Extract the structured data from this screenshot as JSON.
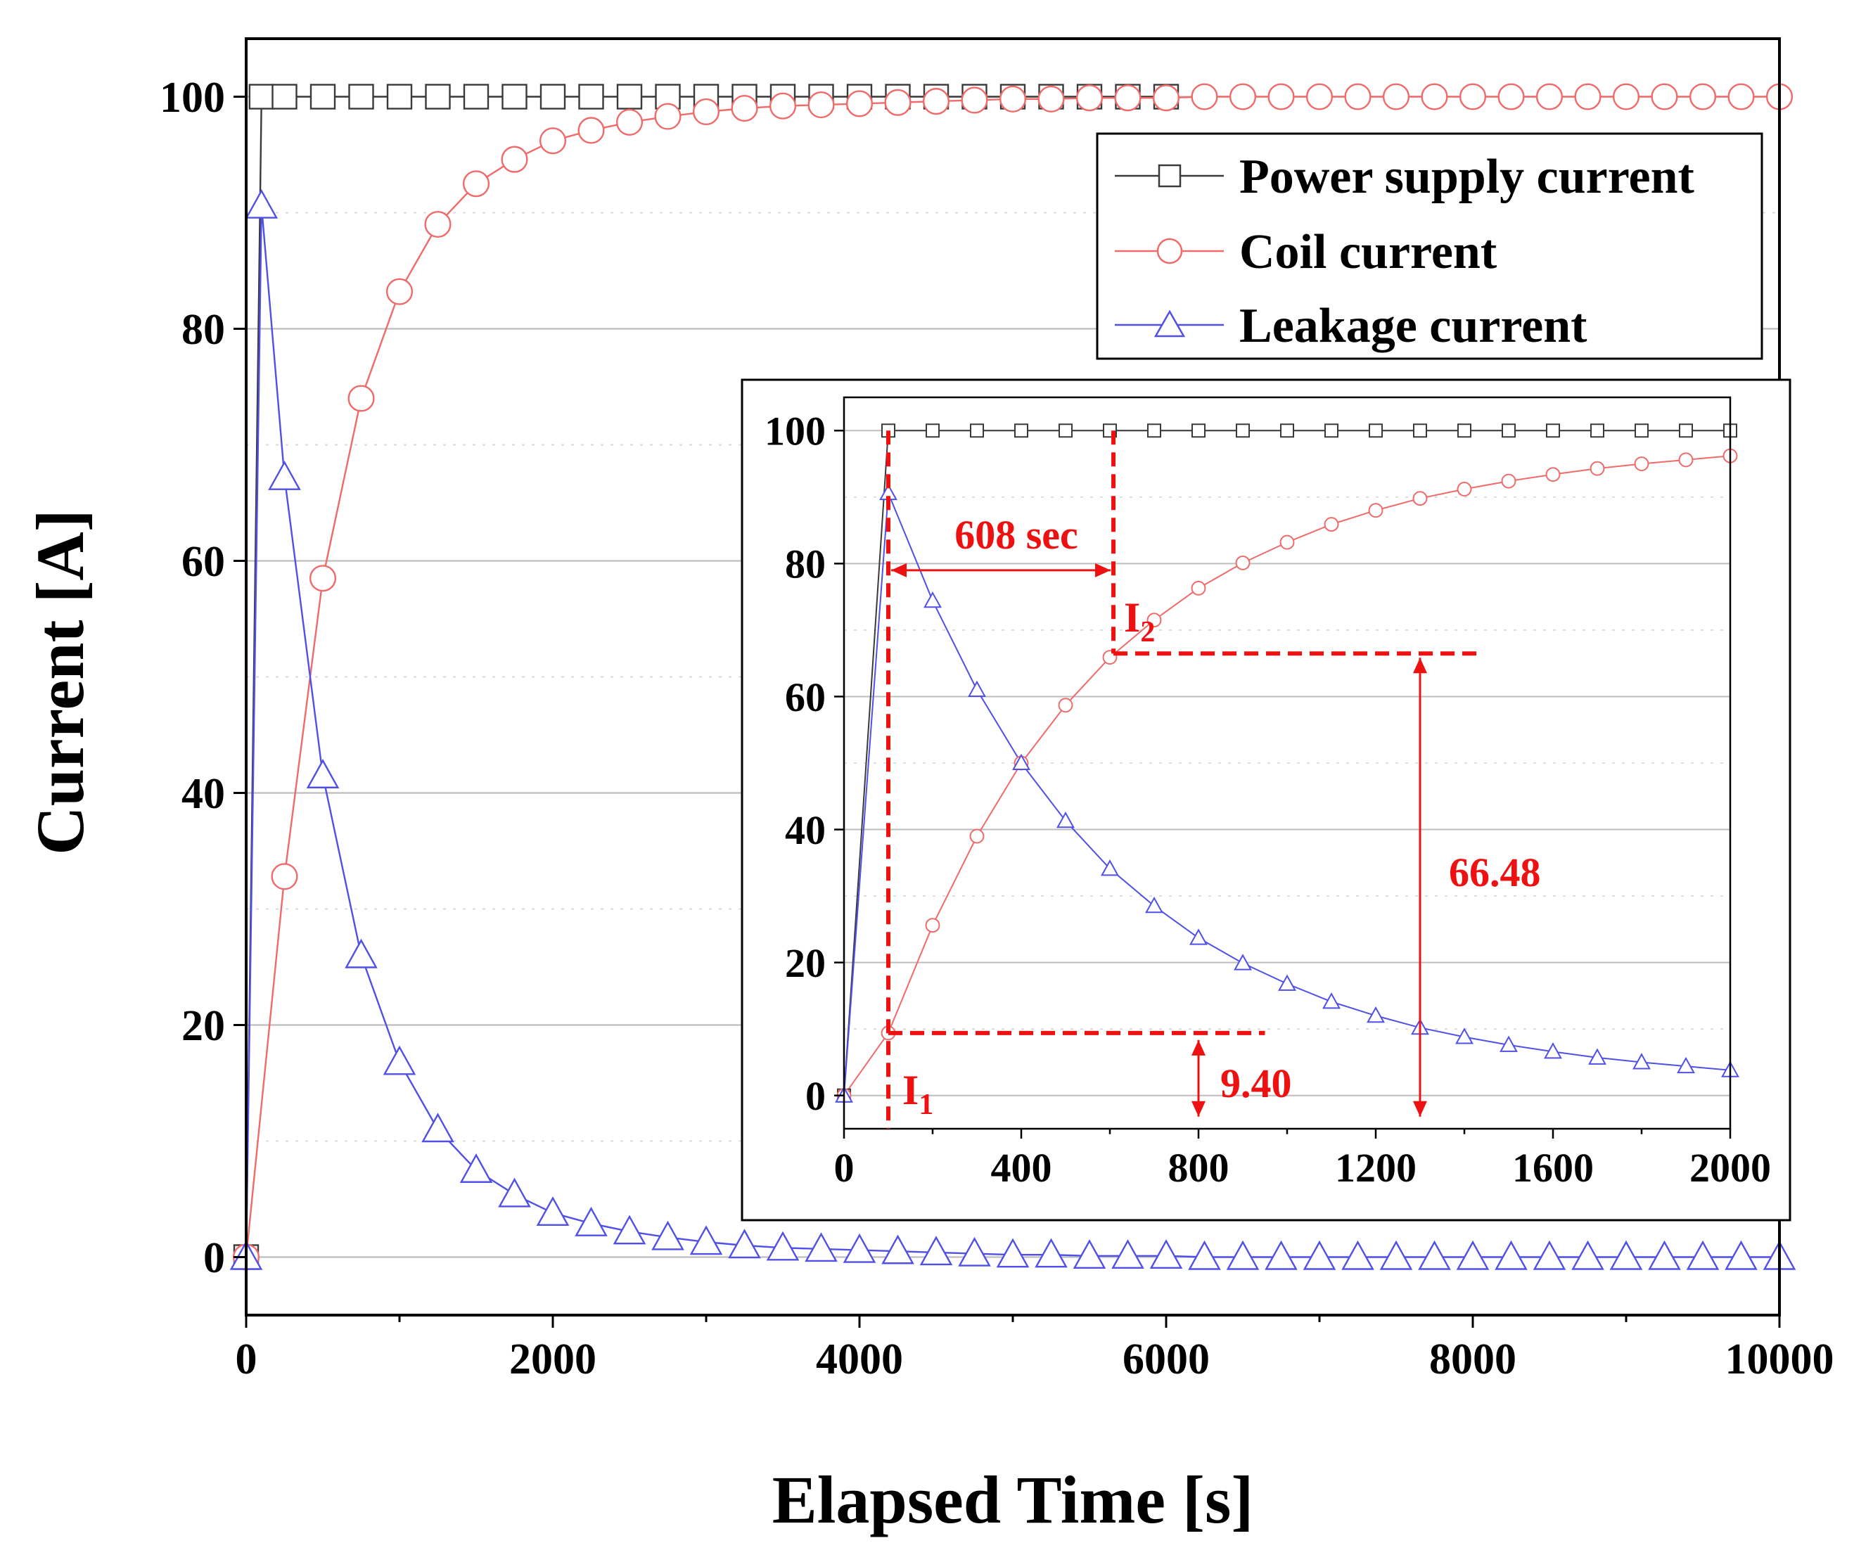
{
  "colors": {
    "supply": "#3a3a3a",
    "coil": "#f06a6a",
    "leak": "#5050e8",
    "annot": "#ee1111",
    "grid": "#bdbdbd",
    "axis": "#000000"
  },
  "chart_data": [
    {
      "id": "main",
      "type": "line",
      "xlabel": "Elapsed Time [s]",
      "ylabel": "Current [A]",
      "xlim": [
        0,
        10000
      ],
      "ylim": [
        -5,
        105
      ],
      "xticks": [
        0,
        2000,
        4000,
        6000,
        8000,
        10000
      ],
      "yticks": [
        0,
        20,
        40,
        60,
        80,
        100
      ],
      "legend_position": "top-right",
      "series": [
        {
          "name": "Power supply current",
          "marker": "square",
          "color": "#3a3a3a",
          "x": [
            0,
            100,
            250,
            500,
            750,
            1000,
            1250,
            1500,
            1750,
            2000,
            2250,
            2500,
            2750,
            3000,
            3250,
            3500,
            3750,
            4000,
            4250,
            4500,
            4750,
            5000,
            5250,
            5500,
            5750,
            6000
          ],
          "y": [
            0,
            100,
            100,
            100,
            100,
            100,
            100,
            100,
            100,
            100,
            100,
            100,
            100,
            100,
            100,
            100,
            100,
            100,
            100,
            100,
            100,
            100,
            100,
            100,
            100,
            100
          ]
        },
        {
          "name": "Coil current",
          "marker": "circle",
          "color": "#f06a6a",
          "x": [
            0,
            250,
            500,
            750,
            1000,
            1250,
            1500,
            1750,
            2000,
            2250,
            2500,
            2750,
            3000,
            3250,
            3500,
            3750,
            4000,
            4250,
            4500,
            4750,
            5000,
            5250,
            5500,
            5750,
            6000,
            6250,
            6500,
            6750,
            7000,
            7250,
            7500,
            7750,
            8000,
            8250,
            8500,
            8750,
            9000,
            9250,
            9500,
            9750,
            10000
          ],
          "y": [
            0,
            32.8,
            58.5,
            74,
            83.2,
            89,
            92.5,
            94.6,
            96.2,
            97.1,
            97.8,
            98.3,
            98.7,
            99,
            99.2,
            99.3,
            99.4,
            99.5,
            99.6,
            99.7,
            99.8,
            99.8,
            99.9,
            99.9,
            99.9,
            100,
            100,
            100,
            100,
            100,
            100,
            100,
            100,
            100,
            100,
            100,
            100,
            100,
            100,
            100,
            100
          ]
        },
        {
          "name": "Leakage current",
          "marker": "triangle",
          "color": "#5050e8",
          "x": [
            0,
            100,
            250,
            500,
            750,
            1000,
            1250,
            1500,
            1750,
            2000,
            2250,
            2500,
            2750,
            3000,
            3250,
            3500,
            3750,
            4000,
            4250,
            4500,
            4750,
            5000,
            5250,
            5500,
            5750,
            6000,
            6250,
            6500,
            6750,
            7000,
            7250,
            7500,
            7750,
            8000,
            8250,
            8500,
            8750,
            9000,
            9250,
            9500,
            9750,
            10000
          ],
          "y": [
            0,
            90.6,
            67.2,
            41.5,
            26,
            16.8,
            11,
            7.5,
            5.4,
            3.8,
            2.9,
            2.2,
            1.7,
            1.3,
            1,
            0.8,
            0.7,
            0.6,
            0.5,
            0.4,
            0.3,
            0.2,
            0.2,
            0.1,
            0.1,
            0.1,
            0,
            0,
            0,
            0,
            0,
            0,
            0,
            0,
            0,
            0,
            0,
            0,
            0,
            0,
            0,
            0
          ]
        }
      ]
    },
    {
      "id": "inset",
      "type": "line",
      "xlim": [
        0,
        2000
      ],
      "ylim": [
        -5,
        105
      ],
      "xticks": [
        0,
        400,
        800,
        1200,
        1600,
        2000
      ],
      "yticks": [
        0,
        20,
        40,
        60,
        80,
        100
      ],
      "series": [
        {
          "name": "Power supply current",
          "marker": "square",
          "color": "#3a3a3a",
          "x": [
            0,
            100,
            200,
            300,
            400,
            500,
            600,
            700,
            800,
            900,
            1000,
            1100,
            1200,
            1300,
            1400,
            1500,
            1600,
            1700,
            1800,
            1900,
            2000
          ],
          "y": [
            0,
            100,
            100,
            100,
            100,
            100,
            100,
            100,
            100,
            100,
            100,
            100,
            100,
            100,
            100,
            100,
            100,
            100,
            100,
            100,
            100
          ]
        },
        {
          "name": "Coil current",
          "marker": "circle",
          "color": "#f06a6a",
          "x": [
            0,
            100,
            200,
            300,
            400,
            500,
            600,
            700,
            800,
            900,
            1000,
            1100,
            1200,
            1300,
            1400,
            1500,
            1600,
            1700,
            1800,
            1900,
            2000
          ],
          "y": [
            0,
            9.4,
            25.6,
            39,
            50,
            58.7,
            65.9,
            71.5,
            76.3,
            80.1,
            83.2,
            85.9,
            88,
            89.8,
            91.2,
            92.4,
            93.4,
            94.3,
            95,
            95.6,
            96.2
          ]
        },
        {
          "name": "Leakage current",
          "marker": "triangle",
          "color": "#5050e8",
          "x": [
            0,
            100,
            200,
            300,
            400,
            500,
            600,
            700,
            800,
            900,
            1000,
            1100,
            1200,
            1300,
            1400,
            1500,
            1600,
            1700,
            1800,
            1900,
            2000
          ],
          "y": [
            0,
            90.6,
            74.4,
            61,
            50,
            41.3,
            34.1,
            28.5,
            23.7,
            19.9,
            16.8,
            14.1,
            12,
            10.2,
            8.8,
            7.6,
            6.6,
            5.7,
            5,
            4.4,
            3.8
          ]
        }
      ],
      "annotations": {
        "t1": 100,
        "t2": 608,
        "i1": 9.4,
        "i2": 66.48,
        "label_interval": "608 sec",
        "label_i1_value": "9.40",
        "label_i2_value": "66.48",
        "label_i1": "I",
        "label_i1_sub": "1",
        "label_i2": "I",
        "label_i2_sub": "2"
      }
    }
  ]
}
